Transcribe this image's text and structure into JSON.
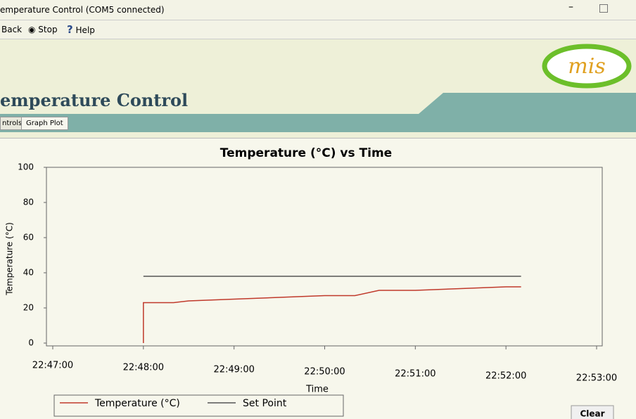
{
  "window": {
    "title": "emperature Control (COM5 connected)"
  },
  "toolbar": {
    "back": "Back",
    "stop": "Stop",
    "help": "Help"
  },
  "logo": {
    "text": "mis"
  },
  "header": {
    "title": "emperature Control"
  },
  "tabs": [
    "ntrols",
    "Graph Plot"
  ],
  "buttons": {
    "clear": "Clear"
  },
  "chart_data": {
    "type": "line",
    "title": "Temperature (°C) vs Time",
    "x_label": "Time",
    "y_label": "Temperature (°C)",
    "xlim": [
      "22:47:00",
      "22:53:00"
    ],
    "xticks": [
      "22:47:00",
      "22:48:00",
      "22:49:00",
      "22:50:00",
      "22:51:00",
      "22:52:00",
      "22:53:00"
    ],
    "ylim": [
      0,
      100
    ],
    "yticks": [
      0,
      20,
      40,
      60,
      80,
      100
    ],
    "series": [
      {
        "name": "Temperature (°C)",
        "color": "#c0392b",
        "x": [
          "22:48:00",
          "22:48:00",
          "22:48:20",
          "22:48:30",
          "22:49:00",
          "22:49:30",
          "22:50:00",
          "22:50:20",
          "22:50:36",
          "22:51:00",
          "22:51:30",
          "22:52:00",
          "22:52:10"
        ],
        "values": [
          0,
          23,
          23,
          24,
          25,
          26,
          27,
          27,
          30,
          30,
          31,
          32,
          32
        ]
      },
      {
        "name": "Set Point",
        "color": "#555555",
        "x": [
          "22:48:00",
          "22:52:10"
        ],
        "values": [
          38,
          38
        ]
      }
    ],
    "grid": false
  }
}
